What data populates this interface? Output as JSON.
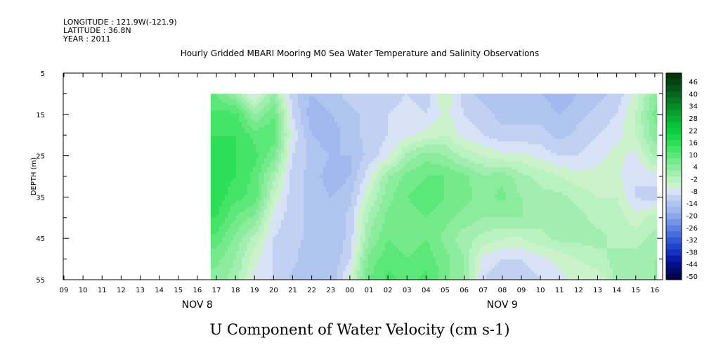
{
  "header": {
    "longitude": "LONGITUDE : 121.9W(-121.9)",
    "latitude": "LATITUDE : 36.8N",
    "year": "YEAR : 2011"
  },
  "chart_data": {
    "type": "heatmap",
    "title": "Hourly Gridded MBARI Mooring M0 Sea Water Temperature and Salinity Observations",
    "subtitle": "U Component of Water Velocity (cm s-1)",
    "ylabel": "DEPTH (m)",
    "xlabel": "",
    "y_axis": {
      "ticks": [
        5,
        15,
        25,
        35,
        45,
        55
      ],
      "ylim": [
        5,
        55
      ],
      "inverted": true,
      "minor_step": 5
    },
    "x_axis": {
      "hour_labels": [
        "09",
        "10",
        "11",
        "12",
        "13",
        "14",
        "15",
        "16",
        "17",
        "18",
        "19",
        "20",
        "21",
        "22",
        "23",
        "00",
        "01",
        "02",
        "03",
        "04",
        "05",
        "06",
        "07",
        "08",
        "09",
        "10",
        "11",
        "12",
        "13",
        "14",
        "15",
        "16"
      ],
      "day_labels": [
        {
          "text": "NOV  8",
          "hour_index": 6
        },
        {
          "text": "NOV  9",
          "hour_index": 22
        }
      ]
    },
    "data_extent": {
      "hour_start_index": 7.7,
      "hour_end_index": 31.1,
      "depth_top": 10,
      "depth_bottom": 55
    },
    "depths": [
      10,
      15,
      20,
      25,
      30,
      35,
      40,
      45,
      50,
      55
    ],
    "hours": [
      8,
      9,
      10,
      11,
      12,
      13,
      14,
      15,
      16,
      17,
      18,
      19,
      20,
      21,
      22,
      23,
      24,
      25,
      26,
      27,
      28,
      29,
      30,
      31
    ],
    "values": [
      [
        10,
        4,
        -6,
        4,
        -10,
        -14,
        -12,
        -10,
        -8,
        -10,
        -8,
        -10,
        -2,
        -10,
        -12,
        -14,
        -12,
        -14,
        -16,
        -14,
        -12,
        -10,
        -4,
        6
      ],
      [
        14,
        14,
        4,
        10,
        -8,
        -16,
        -14,
        -12,
        -10,
        -8,
        -6,
        -8,
        -4,
        -8,
        -10,
        -12,
        -12,
        -12,
        -14,
        -12,
        -10,
        -8,
        -2,
        8
      ],
      [
        16,
        16,
        12,
        12,
        -6,
        -14,
        -16,
        -12,
        -10,
        -8,
        -6,
        -4,
        -2,
        -6,
        -8,
        -10,
        -10,
        -10,
        -12,
        -10,
        -8,
        -6,
        -2,
        6
      ],
      [
        18,
        16,
        14,
        8,
        -8,
        -12,
        -14,
        -14,
        -10,
        -6,
        2,
        6,
        4,
        0,
        -2,
        -4,
        -4,
        -6,
        -8,
        -8,
        -6,
        -4,
        -6,
        2
      ],
      [
        18,
        16,
        12,
        2,
        -10,
        -12,
        -16,
        -14,
        -6,
        4,
        8,
        10,
        10,
        8,
        4,
        6,
        2,
        0,
        -2,
        -4,
        -4,
        -4,
        -8,
        -6
      ],
      [
        18,
        14,
        12,
        -2,
        -10,
        -12,
        -14,
        -12,
        -2,
        6,
        10,
        12,
        10,
        8,
        6,
        8,
        4,
        2,
        2,
        0,
        -2,
        -2,
        -8,
        -10
      ],
      [
        16,
        10,
        6,
        -6,
        -10,
        -12,
        -14,
        -10,
        2,
        8,
        8,
        10,
        8,
        6,
        4,
        4,
        4,
        2,
        2,
        2,
        0,
        0,
        -4,
        0
      ],
      [
        12,
        6,
        0,
        -8,
        -10,
        -12,
        -14,
        -10,
        4,
        10,
        8,
        10,
        6,
        2,
        0,
        -2,
        -2,
        0,
        2,
        2,
        2,
        0,
        0,
        2
      ],
      [
        8,
        4,
        -4,
        -8,
        -10,
        -14,
        -14,
        -8,
        8,
        12,
        10,
        12,
        8,
        4,
        -6,
        -8,
        -8,
        -6,
        -4,
        -2,
        0,
        2,
        2,
        4
      ],
      [
        6,
        2,
        -6,
        -8,
        -12,
        -14,
        -14,
        -4,
        10,
        14,
        12,
        14,
        8,
        4,
        -8,
        -10,
        -10,
        -8,
        -6,
        -4,
        -4,
        2,
        2,
        4
      ]
    ],
    "colorbar": {
      "labels": [
        "46",
        "40",
        "34",
        "28",
        "22",
        "16",
        "10",
        "4",
        "-2",
        "-8",
        "-14",
        "-20",
        "-26",
        "-32",
        "-38",
        "-44",
        "-50"
      ],
      "min": -50,
      "max": 50,
      "step": 3,
      "colors_low_to_high": [
        "#00004d",
        "#000a6b",
        "#000f8c",
        "#0a1aa8",
        "#1430c0",
        "#2244cc",
        "#3358d6",
        "#4a6cdb",
        "#5f80e0",
        "#7594e6",
        "#8aa6ea",
        "#a0b8ee",
        "#b0c4f0",
        "#c2d0f2",
        "#d8e2f6",
        "#ccf2cc",
        "#b8f2c0",
        "#a2eeb0",
        "#8cec9e",
        "#74ea8a",
        "#5ce878",
        "#44e468",
        "#2cde58",
        "#18d64a",
        "#0ccc40",
        "#08c03a",
        "#08b034",
        "#089e2e",
        "#088c28",
        "#067a22",
        "#05681c",
        "#045616",
        "#034610",
        "#02360a"
      ]
    }
  }
}
